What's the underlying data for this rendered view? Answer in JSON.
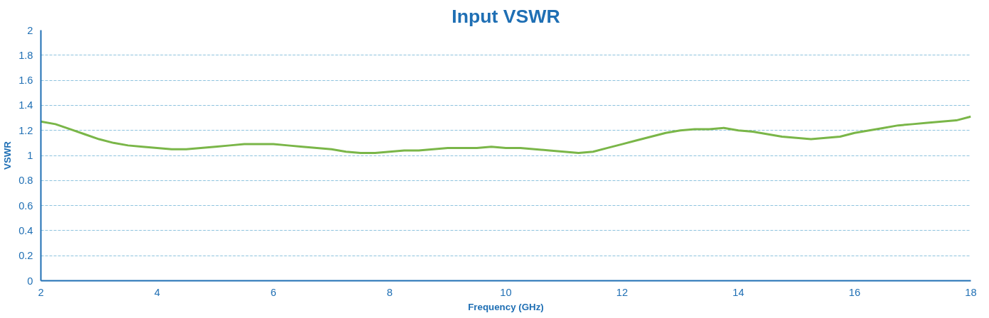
{
  "chart_data": {
    "type": "line",
    "title": "Input VSWR",
    "xlabel": "Frequency (GHz)",
    "ylabel": "VSWR",
    "x": [
      2,
      2.25,
      2.5,
      2.75,
      3,
      3.25,
      3.5,
      3.75,
      4,
      4.25,
      4.5,
      4.75,
      5,
      5.25,
      5.5,
      5.75,
      6,
      6.25,
      6.5,
      6.75,
      7,
      7.25,
      7.5,
      7.75,
      8,
      8.25,
      8.5,
      8.75,
      9,
      9.25,
      9.5,
      9.75,
      10,
      10.25,
      10.5,
      10.75,
      11,
      11.25,
      11.5,
      11.75,
      12,
      12.25,
      12.5,
      12.75,
      13,
      13.25,
      13.5,
      13.75,
      14,
      14.25,
      14.5,
      14.75,
      15,
      15.25,
      15.5,
      15.75,
      16,
      16.25,
      16.5,
      16.75,
      17,
      17.25,
      17.5,
      17.75,
      18
    ],
    "series": [
      {
        "color": "#7ab648",
        "values": [
          1.27,
          1.25,
          1.21,
          1.17,
          1.13,
          1.1,
          1.08,
          1.07,
          1.06,
          1.05,
          1.05,
          1.06,
          1.07,
          1.08,
          1.09,
          1.09,
          1.09,
          1.08,
          1.07,
          1.06,
          1.05,
          1.03,
          1.02,
          1.02,
          1.03,
          1.04,
          1.04,
          1.05,
          1.06,
          1.06,
          1.06,
          1.07,
          1.06,
          1.06,
          1.05,
          1.04,
          1.03,
          1.02,
          1.03,
          1.06,
          1.09,
          1.12,
          1.15,
          1.18,
          1.2,
          1.21,
          1.21,
          1.22,
          1.2,
          1.19,
          1.17,
          1.15,
          1.14,
          1.13,
          1.14,
          1.15,
          1.18,
          1.2,
          1.22,
          1.24,
          1.25,
          1.26,
          1.27,
          1.28,
          1.31
        ]
      }
    ],
    "xlim": [
      2,
      18
    ],
    "xticks": [
      2,
      4,
      6,
      8,
      10,
      12,
      14,
      16,
      18
    ],
    "ylim": [
      0,
      2
    ],
    "yticks": [
      0,
      {
        "value": 0.2,
        "label": "0.2"
      },
      {
        "value": 0.4,
        "label": "0.4"
      },
      {
        "value": 0.6,
        "label": "0.6"
      },
      {
        "value": 0.8,
        "label": "0.8"
      },
      1,
      {
        "value": 1.2,
        "label": "1.2"
      },
      {
        "value": 1.4,
        "label": "1.4"
      },
      {
        "value": 1.6,
        "label": "1.6"
      },
      {
        "value": 1.8,
        "label": "1.8"
      },
      2
    ],
    "grid": "y",
    "marker": "none",
    "line_style": "solid"
  }
}
